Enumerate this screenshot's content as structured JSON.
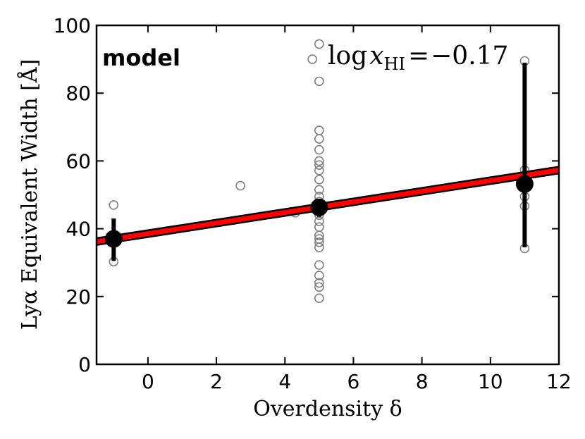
{
  "chart_data": {
    "type": "scatter",
    "xlabel": "Overdensity δ",
    "ylabel": "Lyα Equivalent Width  [Å]",
    "xlim": [
      -1.5,
      12
    ],
    "ylim": [
      0,
      100
    ],
    "xticks": [
      0,
      2,
      4,
      6,
      8,
      10,
      12
    ],
    "yticks": [
      0,
      20,
      40,
      60,
      80,
      100
    ],
    "grid": false,
    "panel_label": "model",
    "annotation": {
      "prefix": "log",
      "var": "x",
      "sub": "HI",
      "equals": "=",
      "value": "−0.17",
      "full_text": "log x_HI = −0.17"
    },
    "scatter_points": {
      "name": "individual galaxies",
      "color": "#808080",
      "points": [
        [
          -1,
          47
        ],
        [
          -1,
          30.3
        ],
        [
          2.7,
          52.7
        ],
        [
          4.3,
          44.7
        ],
        [
          4.8,
          90
        ],
        [
          5,
          94.5
        ],
        [
          5,
          83.5
        ],
        [
          5,
          69
        ],
        [
          5,
          66.5
        ],
        [
          5,
          63.3
        ],
        [
          5,
          60
        ],
        [
          5,
          58.8
        ],
        [
          5,
          57.2
        ],
        [
          5,
          54.5
        ],
        [
          5,
          51.5
        ],
        [
          5,
          49.5
        ],
        [
          5,
          48
        ],
        [
          5,
          46
        ],
        [
          5,
          44
        ],
        [
          5,
          42.2
        ],
        [
          5,
          40.5
        ],
        [
          5,
          38
        ],
        [
          5,
          37
        ],
        [
          5,
          36
        ],
        [
          5,
          34.5
        ],
        [
          5,
          29.3
        ],
        [
          5,
          26.2
        ],
        [
          5,
          24
        ],
        [
          5,
          22.8
        ],
        [
          5,
          19.5
        ],
        [
          11,
          89.5
        ],
        [
          11,
          57.3
        ],
        [
          11,
          55.5
        ],
        [
          11,
          52
        ],
        [
          11,
          49.5
        ],
        [
          11,
          46.7
        ],
        [
          11,
          34.2
        ]
      ]
    },
    "binned_means": {
      "name": "mean",
      "color": "#000000",
      "points": [
        {
          "x": -1,
          "y": 37,
          "ylow": 30.5,
          "yhigh": 43
        },
        {
          "x": 5,
          "y": 46.3,
          "ylow": 43.5,
          "yhigh": 48.5
        },
        {
          "x": 11,
          "y": 53.2,
          "ylow": 34.5,
          "yhigh": 89
        }
      ]
    },
    "fit_line": {
      "name": "linear fit",
      "color": "#ff0000",
      "x": [
        -1.5,
        12
      ],
      "y": [
        36.2,
        57.3
      ]
    }
  }
}
